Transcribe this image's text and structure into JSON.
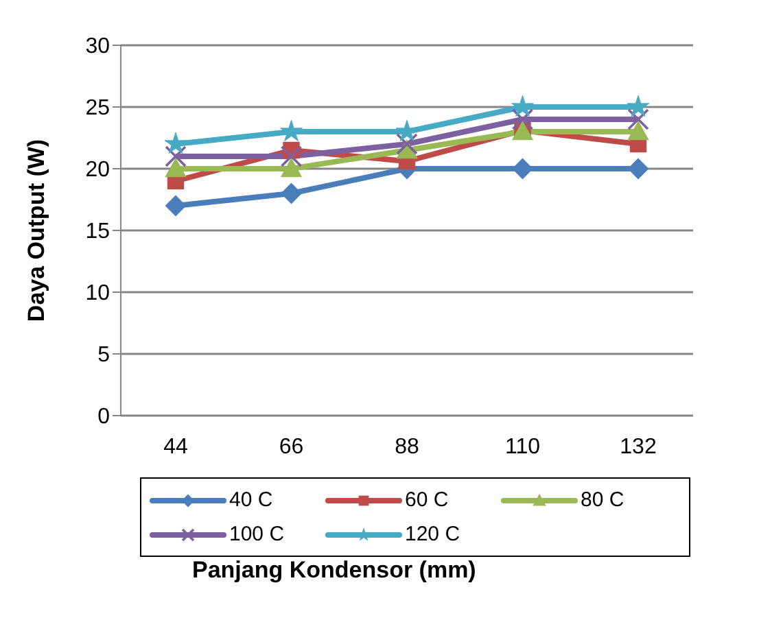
{
  "chart_data": {
    "type": "line",
    "xlabel": "Panjang Kondensor (mm)",
    "ylabel": "Daya Output (W)",
    "categories": [
      "44",
      "66",
      "88",
      "110",
      "132"
    ],
    "ylim": [
      0,
      30
    ],
    "yticks": [
      0,
      5,
      10,
      15,
      20,
      25,
      30
    ],
    "grid": "y",
    "legend": "bottom",
    "line_style": "solid",
    "series": [
      {
        "name": "40 C",
        "color": "#4a7ebb",
        "marker": "diamond",
        "values": [
          17,
          18,
          20,
          20,
          20
        ]
      },
      {
        "name": "60 C",
        "color": "#be4b48",
        "marker": "square",
        "values": [
          19,
          21.5,
          20.6,
          23.1,
          22
        ]
      },
      {
        "name": "80 C",
        "color": "#98b954",
        "marker": "triangle",
        "values": [
          20,
          20,
          21.5,
          23,
          23
        ]
      },
      {
        "name": "100 C",
        "color": "#7d60a0",
        "marker": "cross",
        "values": [
          21,
          21,
          22,
          24,
          24
        ]
      },
      {
        "name": "120 C",
        "color": "#46aac5",
        "marker": "star",
        "values": [
          22,
          23,
          23,
          25,
          25
        ]
      }
    ]
  }
}
